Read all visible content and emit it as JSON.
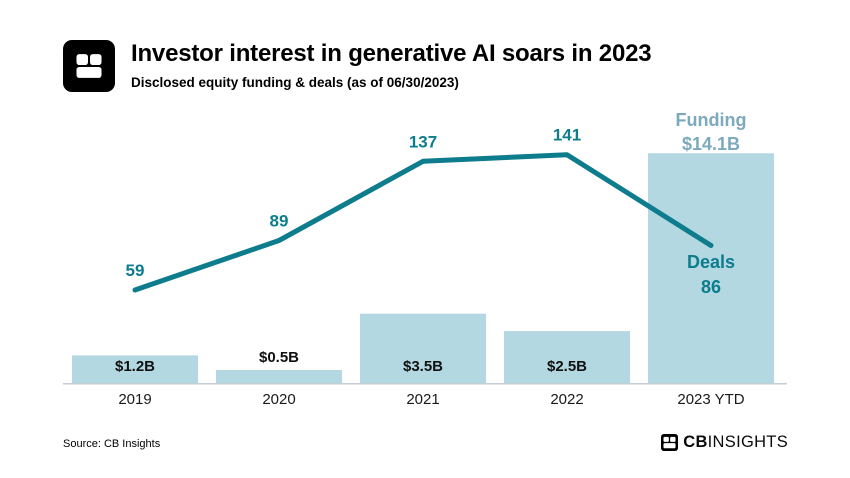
{
  "header": {
    "title": "Investor interest in generative AI soars in 2023",
    "subtitle": "Disclosed equity funding & deals (as of 06/30/2023)"
  },
  "chart_data": {
    "type": "combo",
    "categories": [
      "2019",
      "2020",
      "2021",
      "2022",
      "2023 YTD"
    ],
    "series": [
      {
        "name": "Funding",
        "type": "bar",
        "values": [
          1.2,
          0.5,
          3.5,
          2.5,
          14.1
        ],
        "labels": [
          "$1.2B",
          "$0.5B",
          "$3.5B",
          "$2.5B",
          "$14.1B"
        ],
        "color": "#b3d8e1"
      },
      {
        "name": "Deals",
        "type": "line",
        "values": [
          59,
          89,
          137,
          141,
          86
        ],
        "color": "#0d7c8c"
      }
    ],
    "annotations": [
      {
        "id": "funding",
        "lines": [
          "Funding",
          "$14.1B"
        ],
        "color": "#7caabd"
      },
      {
        "id": "deals",
        "lines": [
          "Deals",
          "86"
        ],
        "color": "#0d7c8c"
      }
    ],
    "axis": {
      "baseline_color": "#c4ced1",
      "label_color": "#1a1a1a",
      "grid": false,
      "legend": "none"
    }
  },
  "footer": {
    "source": "Source: CB Insights",
    "brand_bold": "CB",
    "brand_rest": "INSIGHTS"
  }
}
